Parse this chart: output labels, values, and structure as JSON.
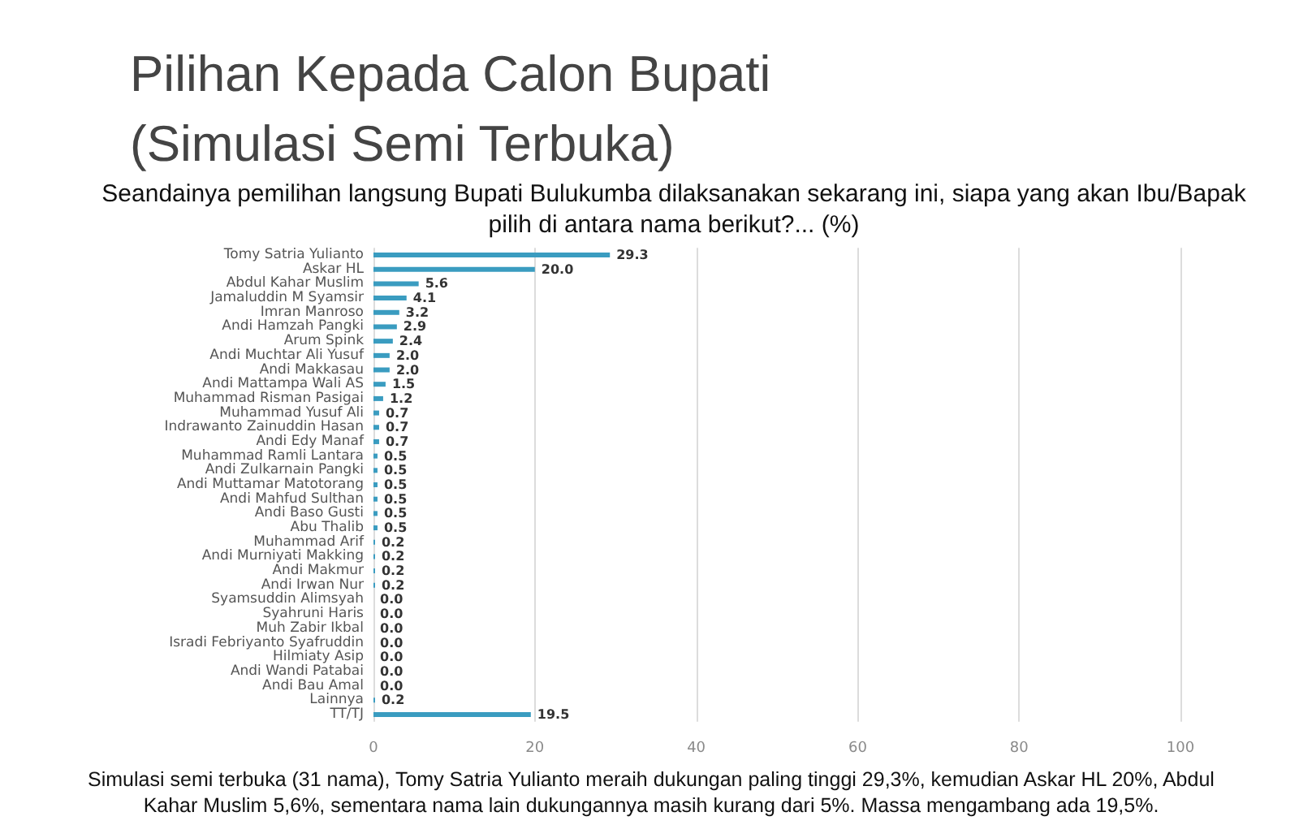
{
  "chart_data": {
    "type": "bar",
    "orientation": "horizontal",
    "title": "Pilihan Kepada Calon Bupati\n(Simulasi Semi Terbuka)",
    "subtitle": "Seandainya pemilihan langsung Bupati Bulukumba dilaksanakan sekarang ini, siapa yang akan Ibu/Bapak pilih di antara nama berikut?... (%)",
    "annotations": [
      "Simulasi semi terbuka (31 nama), Tomy Satria Yulianto meraih dukungan paling tinggi 29,3%, kemudian Askar HL 20%, Abdul Kahar Muslim 5,6%, sementara nama lain dukungannya masih kurang dari 5%. Massa mengambang ada 19,5%."
    ],
    "categories": [
      "Tomy Satria Yulianto",
      "Askar HL",
      "Abdul Kahar Muslim",
      "Jamaluddin M Syamsir",
      "Imran Manroso",
      "Andi Hamzah Pangki",
      "Arum Spink",
      "Andi Muchtar Ali Yusuf",
      "Andi Makkasau",
      "Andi Mattampa Wali AS",
      "Muhammad Risman Pasigai",
      "Muhammad Yusuf Ali",
      "Indrawanto Zainuddin Hasan",
      "Andi Edy Manaf",
      "Muhammad Ramli Lantara",
      "Andi Zulkarnain Pangki",
      "Andi Muttamar Matotorang",
      "Andi Mahfud Sulthan",
      "Andi Baso Gusti",
      "Abu Thalib",
      "Muhammad Arif",
      "Andi Murniyati Makking",
      "Andi Makmur",
      "Andi Irwan Nur",
      "Syamsuddin Alimsyah",
      "Syahruni Haris",
      "Muh Zabir Ikbal",
      "Isradi Febriyanto Syafruddin",
      "Hilmiaty Asip",
      "Andi Wandi Patabai",
      "Andi Bau Amal",
      "Lainnya",
      "TT/TJ"
    ],
    "values": [
      29.3,
      20.0,
      5.6,
      4.1,
      3.2,
      2.9,
      2.4,
      2.0,
      2.0,
      1.5,
      1.2,
      0.7,
      0.7,
      0.7,
      0.5,
      0.5,
      0.5,
      0.5,
      0.5,
      0.5,
      0.2,
      0.2,
      0.2,
      0.2,
      0.0,
      0.0,
      0.0,
      0.0,
      0.0,
      0.0,
      0.0,
      0.2,
      19.5
    ],
    "value_labels": [
      "29.3",
      "20.0",
      "5.6",
      "4.1",
      "3.2",
      "2.9",
      "2.4",
      "2.0",
      "2.0",
      "1.5",
      "1.2",
      "0.7",
      "0.7",
      "0.7",
      "0.5",
      "0.5",
      "0.5",
      "0.5",
      "0.5",
      "0.5",
      "0.2",
      "0.2",
      "0.2",
      "0.2",
      "0.0",
      "0.0",
      "0.0",
      "0.0",
      "0.0",
      "0.0",
      "0.0",
      "0.2",
      "19.5"
    ],
    "color": "#3a9cc0",
    "xlim": [
      0,
      100
    ],
    "xticks": [
      0,
      20,
      40,
      60,
      80,
      100
    ],
    "grid": "x"
  }
}
